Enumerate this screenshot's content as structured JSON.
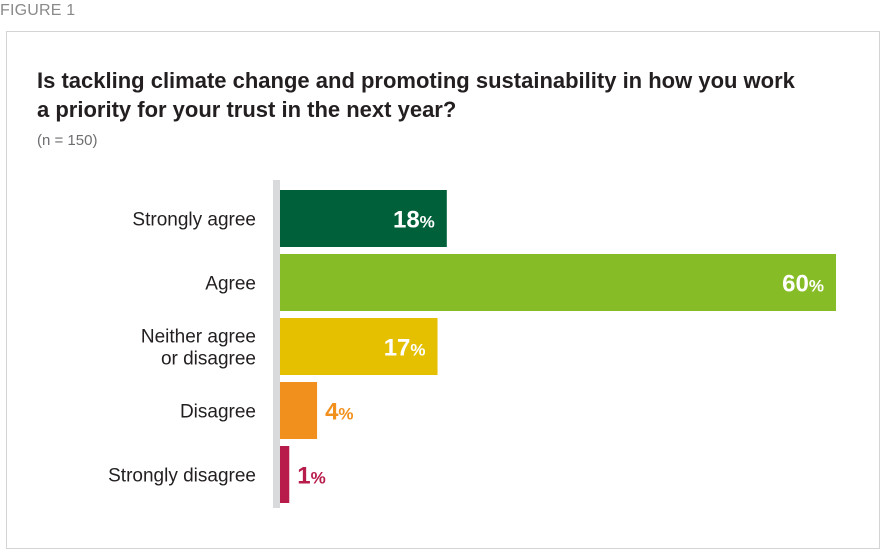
{
  "figure_label": "FIGURE 1",
  "chart_data": {
    "type": "bar",
    "orientation": "horizontal",
    "title": "Is tackling climate change and promoting sustainability in how you work a priority for your trust in the next year?",
    "subtitle": "(n = 150)",
    "categories": [
      [
        "Strongly agree"
      ],
      [
        "Agree"
      ],
      [
        "Neither agree",
        "or disagree"
      ],
      [
        "Disagree"
      ],
      [
        "Strongly disagree"
      ]
    ],
    "values": [
      18,
      60,
      17,
      4,
      1
    ],
    "data_labels": [
      "18",
      "60",
      "17",
      "4",
      "1"
    ],
    "unit": "%",
    "xlim": [
      0,
      60
    ],
    "colors": [
      "#00603a",
      "#86bc25",
      "#e5c000",
      "#f2901e",
      "#b81c4b"
    ],
    "label_inside": [
      true,
      true,
      true,
      false,
      false
    ],
    "grid": false,
    "legend": "none"
  }
}
